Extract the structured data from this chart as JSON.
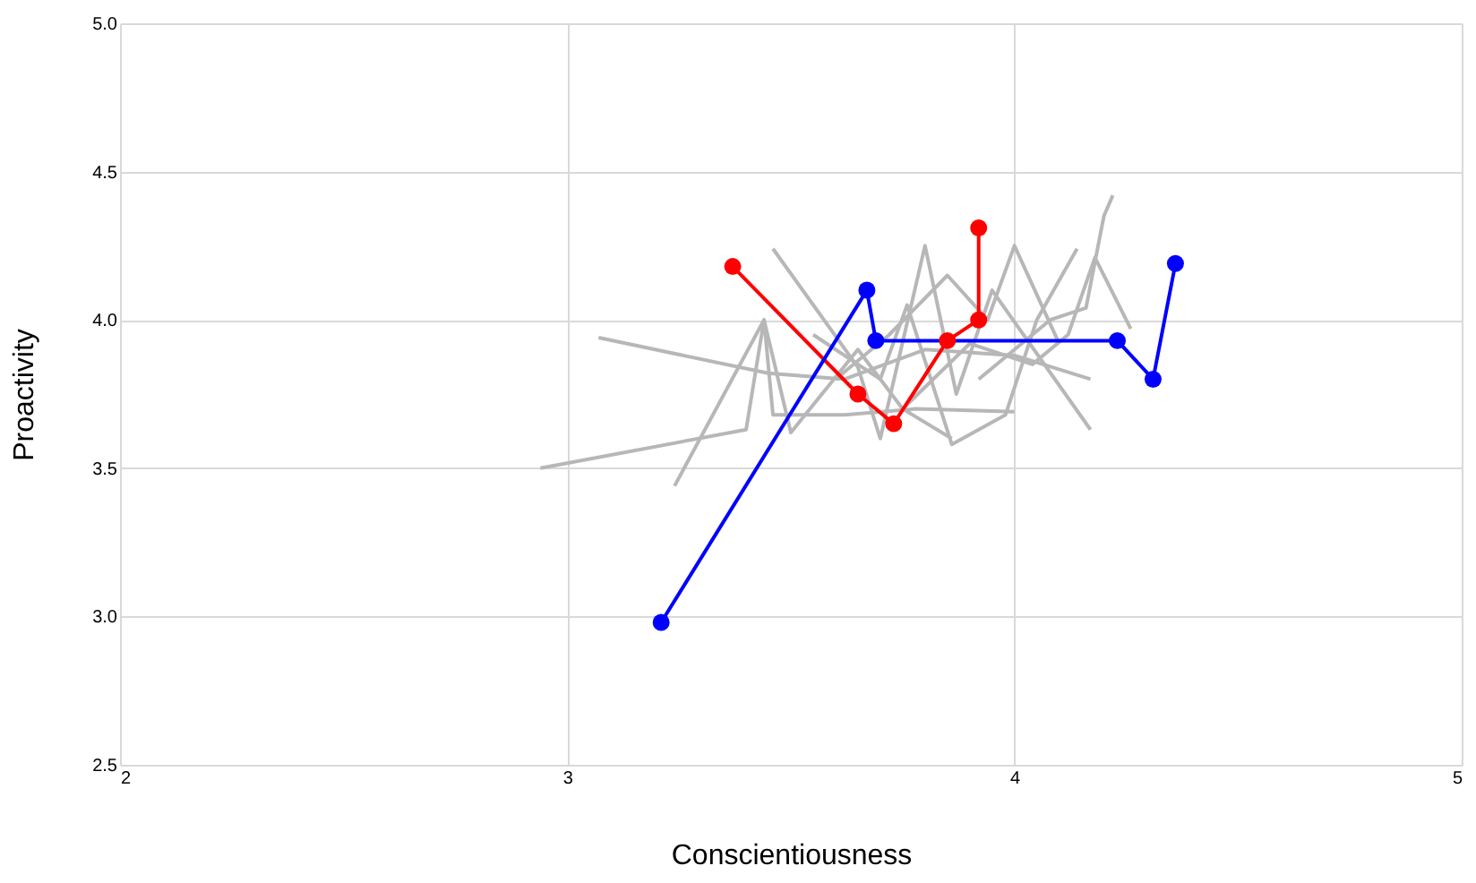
{
  "chart_data": {
    "type": "line",
    "xlabel": "Conscientiousness",
    "ylabel": "Proactivity",
    "xlim": [
      2,
      5
    ],
    "xticks": [
      2,
      3,
      4,
      5
    ],
    "ylim": [
      2.5,
      5.0
    ],
    "yticks": [
      {
        "value": 2.5,
        "label": "2.5"
      },
      {
        "value": 3,
        "label": "3.0"
      },
      {
        "value": 3.5,
        "label": "3.5"
      },
      {
        "value": 4,
        "label": "4.0"
      },
      {
        "value": 4.5,
        "label": "4.5"
      },
      {
        "value": 5,
        "label": "5.0"
      }
    ],
    "grid": true,
    "line_style": "solid",
    "series": [
      {
        "color": "#b7b7b7",
        "marker": "none",
        "x": [
          2.94,
          3.4,
          3.44,
          3.46,
          3.62,
          3.78,
          4.0
        ],
        "values": [
          3.5,
          3.63,
          4.0,
          3.68,
          3.68,
          3.7,
          3.69
        ]
      },
      {
        "color": "#b7b7b7",
        "marker": "none",
        "x": [
          3.07,
          3.45,
          3.62,
          3.8,
          4.0,
          4.17
        ],
        "values": [
          3.94,
          3.82,
          3.8,
          3.9,
          3.88,
          3.8
        ]
      },
      {
        "color": "#b7b7b7",
        "marker": "none",
        "x": [
          3.24,
          3.44,
          3.5,
          3.65,
          3.75,
          3.86
        ],
        "values": [
          3.44,
          4.0,
          3.62,
          3.9,
          3.7,
          3.6
        ]
      },
      {
        "color": "#b7b7b7",
        "marker": "none",
        "x": [
          3.46,
          3.65,
          3.7,
          3.8,
          3.87,
          3.95,
          4.17
        ],
        "values": [
          4.24,
          3.84,
          3.6,
          4.25,
          3.75,
          4.1,
          3.63
        ]
      },
      {
        "color": "#b7b7b7",
        "marker": "none",
        "x": [
          3.55,
          3.7,
          3.76,
          3.86,
          3.98,
          4.05,
          4.14
        ],
        "values": [
          3.95,
          3.8,
          4.05,
          3.58,
          3.68,
          4.0,
          4.24
        ]
      },
      {
        "color": "#b7b7b7",
        "marker": "none",
        "x": [
          3.6,
          3.72,
          3.85,
          3.94,
          4.0,
          4.1
        ],
        "values": [
          3.8,
          3.95,
          4.15,
          4.0,
          4.25,
          3.92
        ]
      },
      {
        "color": "#b7b7b7",
        "marker": "none",
        "x": [
          3.75,
          3.9,
          4.04,
          4.12,
          4.18,
          4.26
        ],
        "values": [
          3.7,
          3.92,
          3.85,
          3.95,
          4.21,
          3.97
        ]
      },
      {
        "color": "#b7b7b7",
        "marker": "none",
        "x": [
          3.92,
          4.08,
          4.16,
          4.2,
          4.22
        ],
        "values": [
          3.8,
          4.0,
          4.04,
          4.35,
          4.42
        ]
      },
      {
        "color": "#ff0000",
        "marker": "circle",
        "x": [
          3.37,
          3.65,
          3.73,
          3.85,
          3.92,
          3.92
        ],
        "values": [
          4.18,
          3.75,
          3.65,
          3.93,
          4.0,
          4.31
        ]
      },
      {
        "color": "#0000ff",
        "marker": "circle",
        "x": [
          3.21,
          3.67,
          3.69,
          4.23,
          4.31,
          4.36
        ],
        "values": [
          2.98,
          4.1,
          3.93,
          3.93,
          3.8,
          4.19
        ]
      }
    ]
  }
}
